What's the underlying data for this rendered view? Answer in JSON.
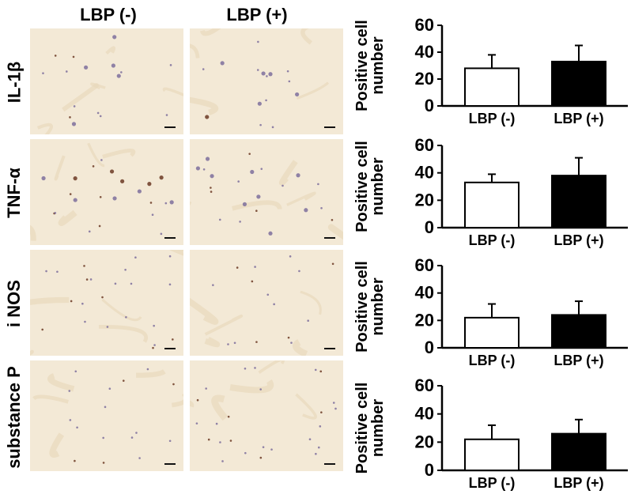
{
  "columns": [
    "LBP (-)",
    "LBP (+)"
  ],
  "rows": [
    "IL-1β",
    "TNF-α",
    "i NOS",
    "substance P"
  ],
  "colors": {
    "tissue_base": "#f3e9d6",
    "tissue_dark": "#e8d9bc",
    "cell_stain": "#7d6e9c",
    "cell_brown": "#6b3a24",
    "bar_negative": "#ffffff",
    "bar_positive": "#000000"
  },
  "chart_data": [
    {
      "type": "bar",
      "categories": [
        "LBP (-)",
        "LBP (+)"
      ],
      "values": [
        28,
        33
      ],
      "errors": [
        10,
        12
      ],
      "ylabel": "Positive cell number",
      "ylim": [
        0,
        60
      ],
      "yticks": [
        "0",
        "20",
        "40",
        "60"
      ]
    },
    {
      "type": "bar",
      "categories": [
        "LBP (-)",
        "LBP (+)"
      ],
      "values": [
        33,
        38
      ],
      "errors": [
        6,
        13
      ],
      "ylabel": "Positive cell number",
      "ylim": [
        0,
        60
      ],
      "yticks": [
        "0",
        "20",
        "40",
        "60"
      ]
    },
    {
      "type": "bar",
      "categories": [
        "LBP (-)",
        "LBP (+)"
      ],
      "values": [
        22,
        24
      ],
      "errors": [
        10,
        10
      ],
      "ylabel": "Positive cell number",
      "ylim": [
        0,
        60
      ],
      "yticks": [
        "0",
        "20",
        "40",
        "60"
      ]
    },
    {
      "type": "bar",
      "categories": [
        "LBP (-)",
        "LBP (+)"
      ],
      "values": [
        22,
        26
      ],
      "errors": [
        10,
        10
      ],
      "ylabel": "Positive cell number",
      "ylim": [
        0,
        60
      ],
      "yticks": [
        "0",
        "20",
        "40",
        "60"
      ]
    }
  ]
}
